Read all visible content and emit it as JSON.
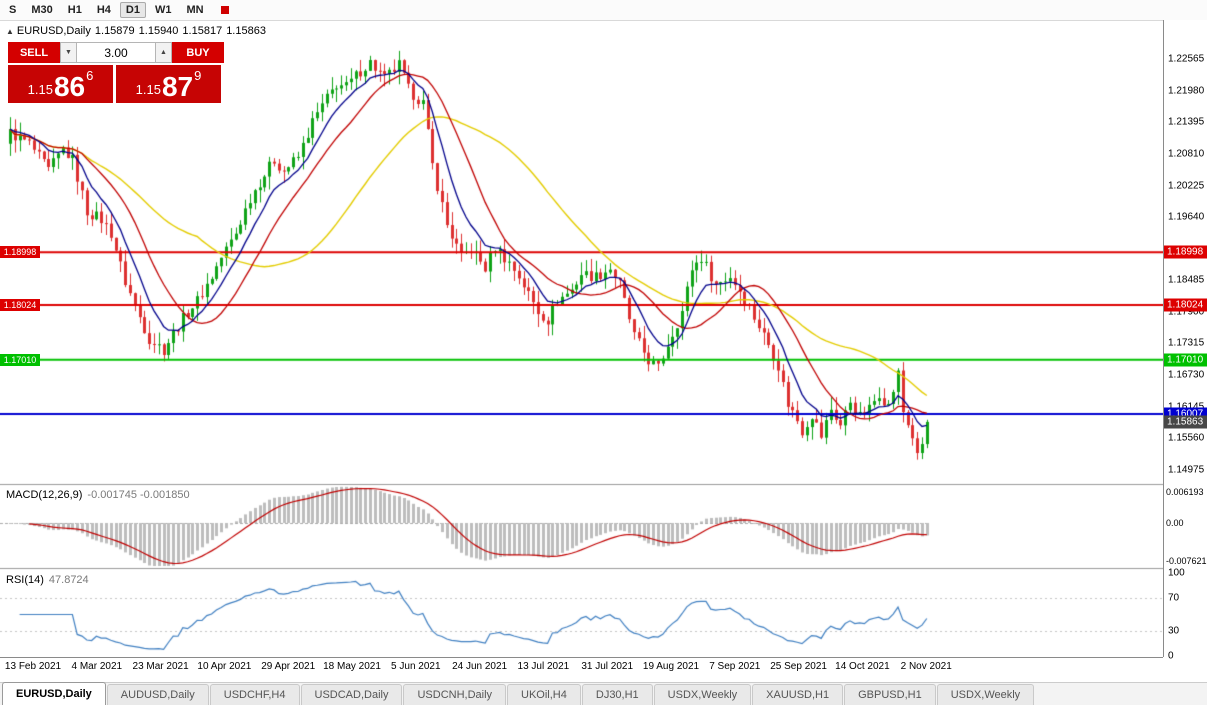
{
  "toolbar": {
    "items": [
      "S",
      "M30",
      "H1",
      "H4",
      "D1",
      "W1",
      "MN"
    ],
    "active": "D1",
    "red_icon_color": "#d00000"
  },
  "chart_header": {
    "marker": "▲",
    "symbol_period": "EURUSD,Daily",
    "open": "1.15879",
    "high": "1.15940",
    "low": "1.15817",
    "close": "1.15863"
  },
  "trade_panel": {
    "sell_label": "SELL",
    "buy_label": "BUY",
    "volume": "3.00",
    "volume_down_icon": "▼",
    "volume_up_icon": "▲",
    "sell_price": {
      "prefix": "1.15",
      "big": "86",
      "sup": "6"
    },
    "buy_price": {
      "prefix": "1.15",
      "big": "87",
      "sup": "9"
    },
    "button_color": "#d40000",
    "price_box_color": "#c60404"
  },
  "macd_panel": {
    "label": "MACD(12,26,9)",
    "values": "-0.001745 -0.001850"
  },
  "rsi_panel": {
    "label": "RSI(14)",
    "value": "47.8724"
  },
  "tabs": {
    "active_index": 0,
    "items": [
      "EURUSD,Daily",
      "AUDUSD,Daily",
      "USDCHF,H4",
      "USDCAD,Daily",
      "USDCNH,Daily",
      "UKOil,H4",
      "DJ30,H1",
      "USDX,Weekly",
      "XAUUSD,H1",
      "GBPUSD,H1",
      "USDX,Weekly"
    ]
  },
  "chart_data": {
    "type": "candlestick",
    "symbol": "EURUSD",
    "timeframe": "Daily",
    "ohlc_current": {
      "open": 1.15879,
      "high": 1.1594,
      "low": 1.15817,
      "close": 1.15863
    },
    "n_candles": 192,
    "close_anchors": [
      [
        0,
        1.212
      ],
      [
        4,
        1.21
      ],
      [
        8,
        1.205
      ],
      [
        11,
        1.209
      ],
      [
        13,
        1.207
      ],
      [
        16,
        1.1975
      ],
      [
        19,
        1.196
      ],
      [
        21,
        1.1935
      ],
      [
        24,
        1.1845
      ],
      [
        27,
        1.178
      ],
      [
        29,
        1.174
      ],
      [
        32,
        1.172
      ],
      [
        34,
        1.175
      ],
      [
        37,
        1.179
      ],
      [
        39,
        1.181
      ],
      [
        42,
        1.1855
      ],
      [
        44,
        1.189
      ],
      [
        47,
        1.1935
      ],
      [
        50,
        1.2
      ],
      [
        52,
        1.203
      ],
      [
        55,
        1.207
      ],
      [
        57,
        1.205
      ],
      [
        60,
        1.2075
      ],
      [
        63,
        1.214
      ],
      [
        65,
        1.217
      ],
      [
        68,
        1.221
      ],
      [
        70,
        1.2205
      ],
      [
        73,
        1.2235
      ],
      [
        75,
        1.225
      ],
      [
        78,
        1.222
      ],
      [
        81,
        1.2245
      ],
      [
        83,
        1.22
      ],
      [
        86,
        1.2175
      ],
      [
        88,
        1.206
      ],
      [
        91,
        1.195
      ],
      [
        94,
        1.189
      ],
      [
        96,
        1.1905
      ],
      [
        99,
        1.187
      ],
      [
        101,
        1.191
      ],
      [
        104,
        1.188
      ],
      [
        106,
        1.1855
      ],
      [
        110,
        1.179
      ],
      [
        112,
        1.1775
      ],
      [
        114,
        1.181
      ],
      [
        117,
        1.183
      ],
      [
        119,
        1.186
      ],
      [
        122,
        1.1855
      ],
      [
        125,
        1.187
      ],
      [
        127,
        1.184
      ],
      [
        130,
        1.1745
      ],
      [
        133,
        1.17
      ],
      [
        135,
        1.1685
      ],
      [
        137,
        1.173
      ],
      [
        140,
        1.179
      ],
      [
        142,
        1.187
      ],
      [
        144,
        1.189
      ],
      [
        147,
        1.184
      ],
      [
        150,
        1.1855
      ],
      [
        152,
        1.183
      ],
      [
        155,
        1.178
      ],
      [
        158,
        1.173
      ],
      [
        160,
        1.169
      ],
      [
        162,
        1.162
      ],
      [
        164,
        1.159
      ],
      [
        165,
        1.157
      ],
      [
        167,
        1.16
      ],
      [
        169,
        1.156
      ],
      [
        171,
        1.161
      ],
      [
        173,
        1.158
      ],
      [
        175,
        1.1625
      ],
      [
        177,
        1.1595
      ],
      [
        179,
        1.161
      ],
      [
        181,
        1.164
      ],
      [
        183,
        1.1615
      ],
      [
        185,
        1.1675
      ],
      [
        186,
        1.1605
      ],
      [
        188,
        1.156
      ],
      [
        189,
        1.152
      ],
      [
        190,
        1.1545
      ],
      [
        191,
        1.15863
      ]
    ],
    "price_axis": {
      "min": 1.14735,
      "max": 1.23285,
      "ticks": [
        {
          "label": "1.22565",
          "price": 1.22565
        },
        {
          "label": "1.21980",
          "price": 1.2198
        },
        {
          "label": "1.21395",
          "price": 1.21395
        },
        {
          "label": "1.20810",
          "price": 1.2081
        },
        {
          "label": "1.20225",
          "price": 1.20225
        },
        {
          "label": "1.19640",
          "price": 1.1964
        },
        {
          "label": "1.18485",
          "price": 1.18485
        },
        {
          "label": "1.17900",
          "price": 1.179
        },
        {
          "label": "1.17315",
          "price": 1.17315
        },
        {
          "label": "1.16730",
          "price": 1.1673
        },
        {
          "label": "1.16145",
          "price": 1.16145
        },
        {
          "label": "1.15560",
          "price": 1.1556
        },
        {
          "label": "1.14975",
          "price": 1.14975
        }
      ]
    },
    "x_axis_labels": [
      "13 Feb 2021",
      "4 Mar 2021",
      "23 Mar 2021",
      "10 Apr 2021",
      "29 Apr 2021",
      "18 May 2021",
      "5 Jun 2021",
      "24 Jun 2021",
      "13 Jul 2021",
      "31 Jul 2021",
      "19 Aug 2021",
      "7 Sep 2021",
      "25 Sep 2021",
      "14 Oct 2021",
      "2 Nov 2021"
    ],
    "levels": [
      {
        "label": "1.18998",
        "price": 1.18998,
        "color": "#dd0000",
        "left_tag": true
      },
      {
        "label": "1.18024",
        "price": 1.18024,
        "color": "#dd0000",
        "left_tag": true
      },
      {
        "label": "1.17010",
        "price": 1.1701,
        "color": "#00c000",
        "left_tag": true
      },
      {
        "label": "1.16007",
        "price": 1.16007,
        "color": "#0000d0",
        "left_tag": false
      }
    ],
    "current_price_tag": {
      "label": "1.15863",
      "price": 1.15863,
      "color": "#474747"
    },
    "candle_colors": {
      "up": "#0fa317",
      "down": "#dd3030"
    },
    "moving_averages": [
      {
        "name": "slow",
        "type": "sma",
        "period": 40,
        "color": "#e3cc00"
      },
      {
        "name": "mid",
        "type": "sma",
        "period": 16,
        "color": "#c00000"
      },
      {
        "name": "fast",
        "type": "ema",
        "period": 8,
        "color": "#00008b"
      }
    ],
    "macd": {
      "fast": 12,
      "slow": 26,
      "signal": 9,
      "value": -0.001745,
      "signal_value": -0.00185,
      "histogram_color": "#bdbdbd",
      "signal_color": "#c00000",
      "axis": [
        {
          "label": "0.006193",
          "value": 0.006193
        },
        {
          "label": "0.00",
          "value": 0
        },
        {
          "label": "-0.007621",
          "value": -0.007621
        }
      ]
    },
    "rsi": {
      "period": 14,
      "value": 47.8724,
      "color": "#3f7fc1",
      "guides": [
        70,
        30
      ],
      "axis": [
        {
          "label": "100",
          "value": 100
        },
        {
          "label": "70",
          "value": 70
        },
        {
          "label": "30",
          "value": 30
        },
        {
          "label": "0",
          "value": 0
        }
      ]
    }
  }
}
